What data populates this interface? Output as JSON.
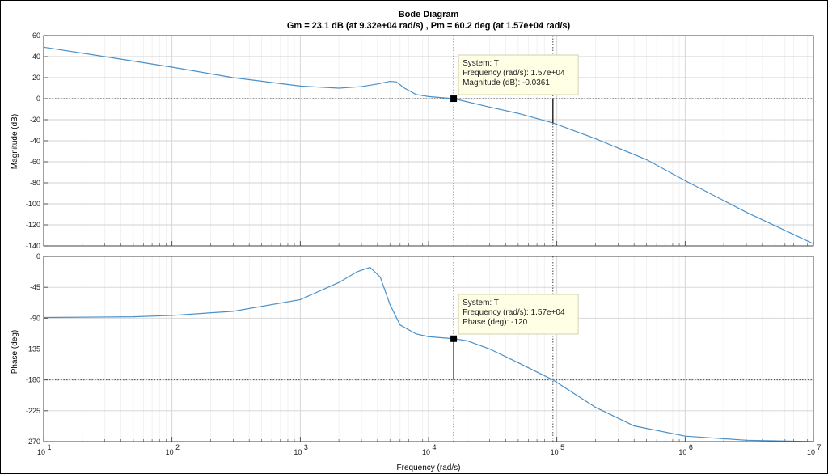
{
  "chart_data": {
    "type": "line",
    "title": "Bode Diagram",
    "subtitle": "Gm = 23.1 dB (at 9.32e+04 rad/s) ,  Pm = 60.2 deg (at 1.57e+04 rad/s)",
    "xlabel": "Frequency  (rad/s)",
    "xscale": "log",
    "xlim": [
      10,
      10000000
    ],
    "x_ticks": [
      {
        "base": "10",
        "exp": "1"
      },
      {
        "base": "10",
        "exp": "2"
      },
      {
        "base": "10",
        "exp": "3"
      },
      {
        "base": "10",
        "exp": "4"
      },
      {
        "base": "10",
        "exp": "5"
      },
      {
        "base": "10",
        "exp": "6"
      },
      {
        "base": "10",
        "exp": "7"
      }
    ],
    "grid": true,
    "line_color": "#4a90c8",
    "panels": [
      {
        "name": "magnitude",
        "ylabel": "Magnitude (dB)",
        "ylim": [
          -140,
          60
        ],
        "yticks": [
          "60",
          "40",
          "20",
          "0",
          "-20",
          "-40",
          "-60",
          "-80",
          "-100",
          "-120",
          "-140"
        ],
        "reference_line": 0,
        "margin_marker_x": 93200,
        "series": [
          {
            "x": [
              10,
              30,
              100,
              300,
              1000,
              2000,
              3000,
              4000,
              5000,
              5600,
              6500,
              8000,
              10000,
              15700,
              30000,
              50000,
              93200,
              200000,
              500000,
              1000000,
              3000000,
              10000000
            ],
            "y": [
              49,
              40,
              30,
              20,
              12,
              10,
              11.5,
              14,
              16.5,
              16,
              10,
              4,
              2,
              0,
              -8,
              -14,
              -23,
              -38,
              -58,
              -78,
              -108,
              -138
            ]
          }
        ],
        "datatip": {
          "x": 15700,
          "y": -0.0361,
          "lines": [
            "System: T",
            "Frequency (rad/s): 1.57e+04",
            "Magnitude (dB): -0.0361"
          ]
        }
      },
      {
        "name": "phase",
        "ylabel": "Phase (deg)",
        "ylim": [
          -270,
          0
        ],
        "yticks": [
          "0",
          "-45",
          "-90",
          "-135",
          "-180",
          "-225",
          "-270"
        ],
        "reference_line": -180,
        "margin_marker_x": 93200,
        "series": [
          {
            "x": [
              10,
              50,
              100,
              300,
              1000,
              2000,
              2800,
              3500,
              4200,
              5000,
              6000,
              8000,
              10000,
              15700,
              20000,
              30000,
              50000,
              93200,
              200000,
              400000,
              1000000,
              3000000,
              10000000
            ],
            "y": [
              -89,
              -88,
              -86,
              -80,
              -63,
              -38,
              -22,
              -16,
              -30,
              -70,
              -100,
              -113,
              -117,
              -120,
              -123,
              -135,
              -155,
              -180,
              -220,
              -247,
              -262,
              -268,
              -270
            ]
          }
        ],
        "datatip": {
          "x": 15700,
          "y": -120,
          "lines": [
            "System: T",
            "Frequency (rad/s): 1.57e+04",
            "Phase (deg): -120"
          ]
        }
      }
    ]
  }
}
